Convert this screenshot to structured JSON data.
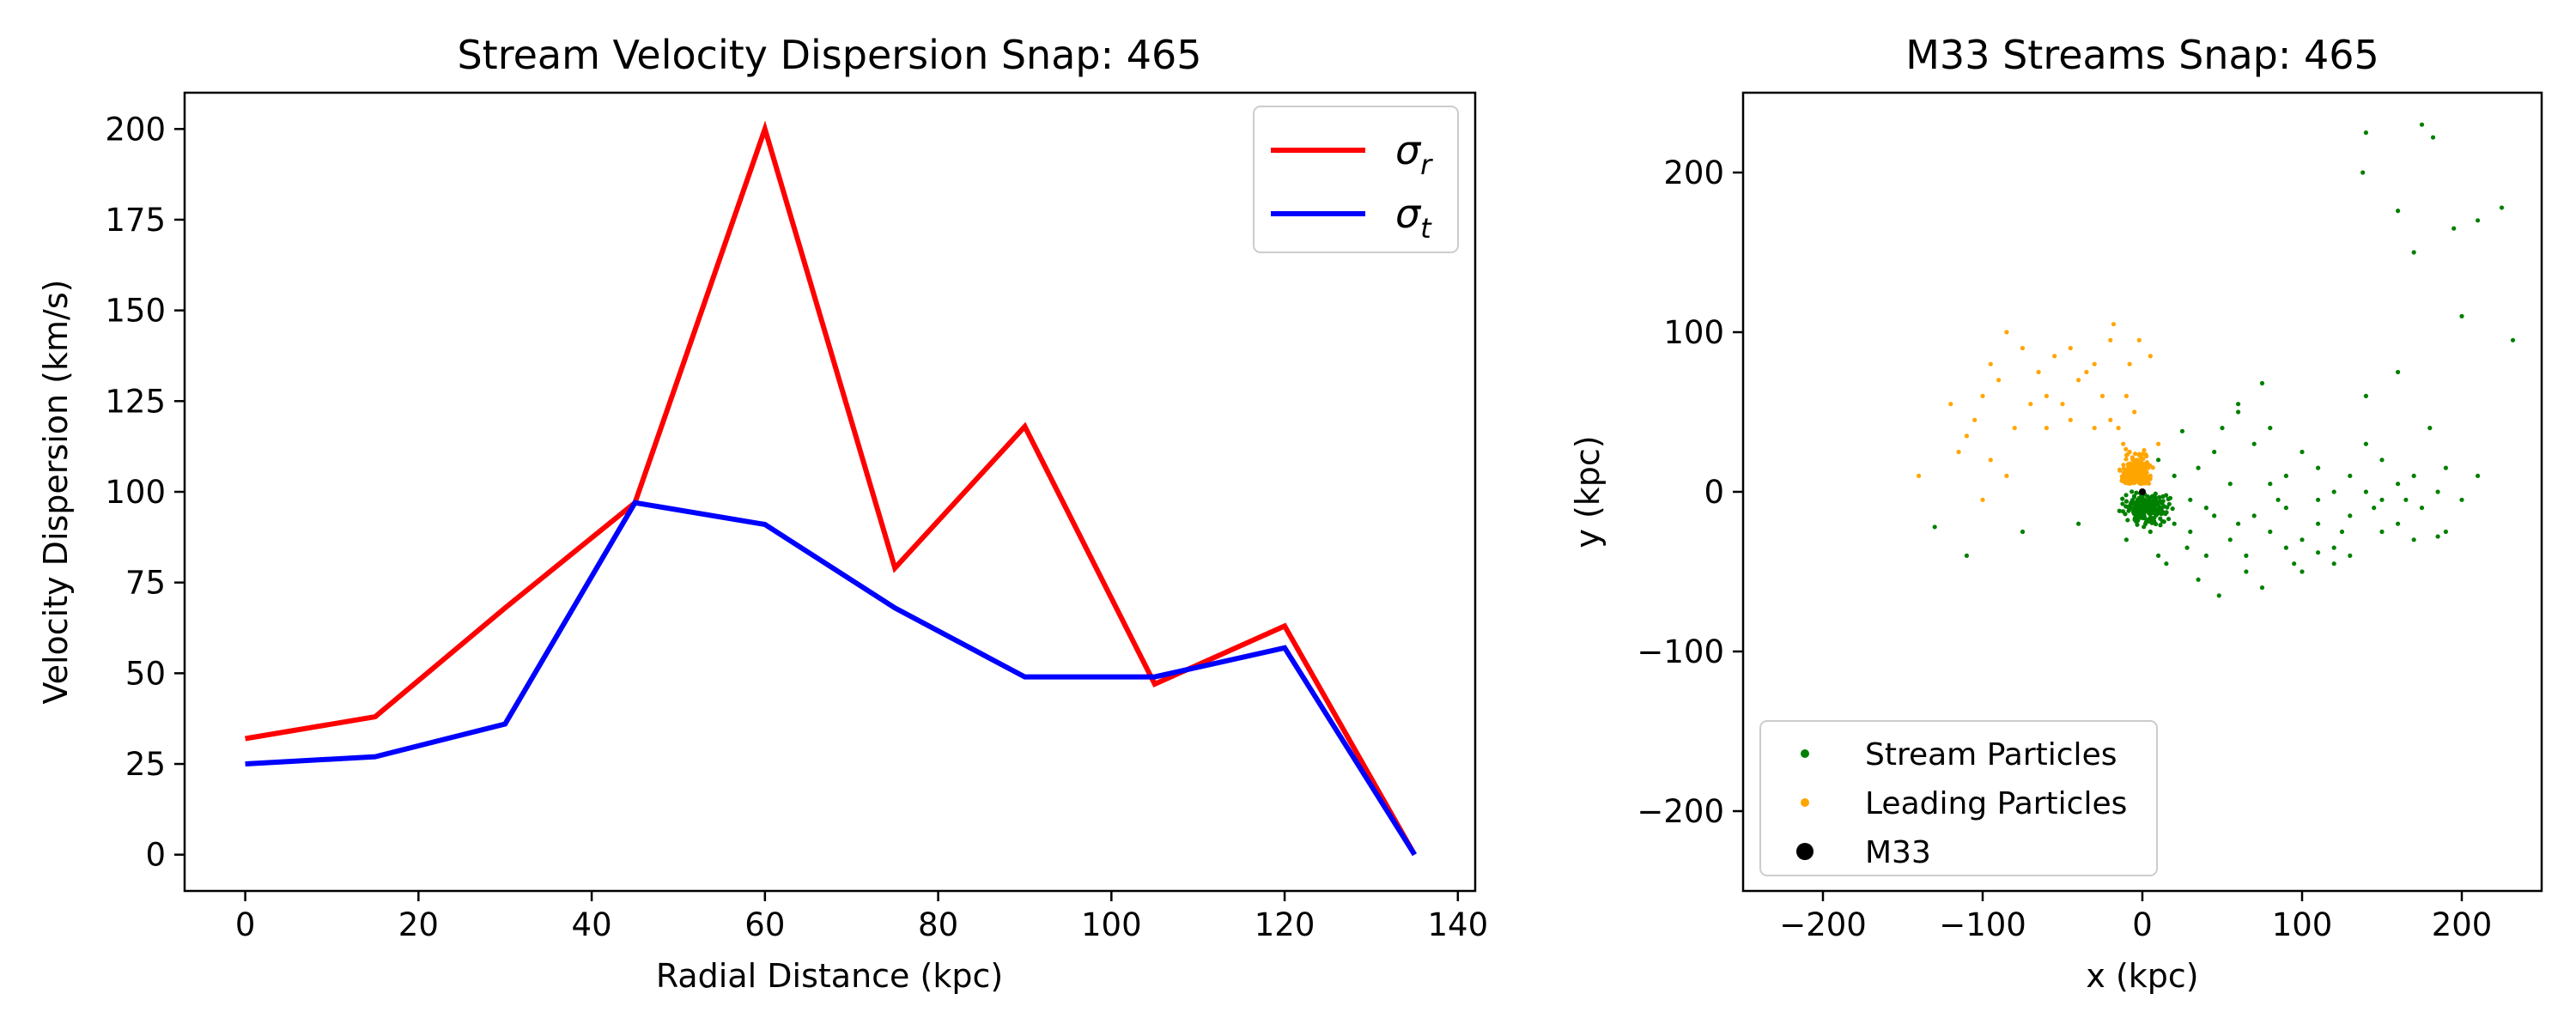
{
  "chart_data": [
    {
      "type": "line",
      "title": "Stream Velocity Dispersion Snap: 465",
      "xlabel": "Radial Distance (kpc)",
      "ylabel": "Velocity Dispersion (km/s)",
      "xlim": [
        -7,
        142
      ],
      "ylim": [
        -10,
        210
      ],
      "xticks": [
        0,
        20,
        40,
        60,
        80,
        100,
        120,
        140
      ],
      "yticks": [
        0,
        25,
        50,
        75,
        100,
        125,
        150,
        175,
        200
      ],
      "legend_position": "upper right",
      "x": [
        0,
        15,
        30,
        45,
        60,
        75,
        90,
        105,
        120,
        135
      ],
      "series": [
        {
          "name": "σr",
          "symbol": "σ",
          "sub": "r",
          "color": "#ff0000",
          "values": [
            32,
            38,
            68,
            97,
            200,
            79,
            118,
            47,
            63,
            0
          ]
        },
        {
          "name": "σt",
          "symbol": "σ",
          "sub": "t",
          "color": "#0000ff",
          "values": [
            25,
            27,
            36,
            97,
            91,
            68,
            49,
            49,
            57,
            0
          ]
        }
      ]
    },
    {
      "type": "scatter",
      "title": "M33 Streams Snap: 465",
      "xlabel": "x (kpc)",
      "ylabel": "y (kpc)",
      "xlim": [
        -250,
        250
      ],
      "ylim": [
        -250,
        250
      ],
      "xticks": [
        -200,
        -100,
        0,
        100,
        200
      ],
      "yticks": [
        -200,
        -100,
        0,
        100,
        200
      ],
      "legend_position": "lower left",
      "series": [
        {
          "name": "Stream Particles",
          "color": "#008000",
          "points": [
            [
              25,
              38
            ],
            [
              28,
              -35
            ],
            [
              40,
              -40
            ],
            [
              55,
              -30
            ],
            [
              60,
              -20
            ],
            [
              70,
              -15
            ],
            [
              80,
              -25
            ],
            [
              90,
              -10
            ],
            [
              100,
              -30
            ],
            [
              110,
              -20
            ],
            [
              120,
              -35
            ],
            [
              130,
              -15
            ],
            [
              140,
              0
            ],
            [
              150,
              -5
            ],
            [
              160,
              -20
            ],
            [
              175,
              -10
            ],
            [
              185,
              0
            ],
            [
              190,
              15
            ],
            [
              180,
              40
            ],
            [
              170,
              10
            ],
            [
              160,
              5
            ],
            [
              150,
              20
            ],
            [
              140,
              30
            ],
            [
              130,
              10
            ],
            [
              120,
              0
            ],
            [
              110,
              15
            ],
            [
              100,
              25
            ],
            [
              90,
              10
            ],
            [
              80,
              5
            ],
            [
              70,
              30
            ],
            [
              60,
              50
            ],
            [
              50,
              40
            ],
            [
              40,
              -10
            ],
            [
              30,
              -5
            ],
            [
              20,
              10
            ],
            [
              10,
              20
            ],
            [
              5,
              -25
            ],
            [
              -5,
              -10
            ],
            [
              15,
              -45
            ],
            [
              35,
              -55
            ],
            [
              65,
              -50
            ],
            [
              95,
              -45
            ],
            [
              110,
              -5
            ],
            [
              150,
              -25
            ],
            [
              200,
              -5
            ],
            [
              210,
              10
            ],
            [
              140,
              60
            ],
            [
              160,
              75
            ],
            [
              75,
              68
            ],
            [
              60,
              55
            ],
            [
              80,
              40
            ],
            [
              45,
              25
            ],
            [
              35,
              15
            ],
            [
              55,
              5
            ],
            [
              85,
              -5
            ],
            [
              125,
              -25
            ],
            [
              145,
              -10
            ],
            [
              165,
              -5
            ],
            [
              120,
              -45
            ],
            [
              100,
              -50
            ],
            [
              75,
              -60
            ],
            [
              48,
              -65
            ],
            [
              -75,
              -25
            ],
            [
              -110,
              -40
            ],
            [
              -130,
              -22
            ],
            [
              -40,
              -20
            ],
            [
              -10,
              -30
            ],
            [
              10,
              -40
            ],
            [
              200,
              110
            ],
            [
              210,
              170
            ],
            [
              225,
              178
            ],
            [
              232,
              95
            ],
            [
              195,
              165
            ],
            [
              170,
              150
            ],
            [
              160,
              176
            ],
            [
              140,
              225
            ],
            [
              138,
              200
            ],
            [
              175,
              230
            ],
            [
              182,
              222
            ],
            [
              190,
              -25
            ],
            [
              170,
              -30
            ],
            [
              185,
              -28
            ],
            [
              130,
              -40
            ],
            [
              110,
              -38
            ],
            [
              90,
              -35
            ],
            [
              65,
              -40
            ],
            [
              30,
              -25
            ],
            [
              20,
              -20
            ],
            [
              45,
              -15
            ]
          ]
        },
        {
          "name": "Leading Particles",
          "color": "#ffa500",
          "points": [
            [
              -20,
              95
            ],
            [
              -30,
              80
            ],
            [
              -45,
              90
            ],
            [
              -55,
              85
            ],
            [
              -65,
              75
            ],
            [
              -75,
              90
            ],
            [
              -85,
              100
            ],
            [
              -95,
              80
            ],
            [
              -90,
              70
            ],
            [
              -100,
              60
            ],
            [
              -105,
              45
            ],
            [
              -110,
              35
            ],
            [
              -115,
              25
            ],
            [
              -120,
              55
            ],
            [
              -140,
              10
            ],
            [
              -60,
              60
            ],
            [
              -50,
              55
            ],
            [
              -40,
              70
            ],
            [
              -10,
              60
            ],
            [
              -5,
              50
            ],
            [
              -15,
              40
            ],
            [
              -20,
              45
            ],
            [
              -12,
              30
            ],
            [
              -8,
              25
            ],
            [
              -3,
              20
            ],
            [
              0,
              15
            ],
            [
              5,
              10
            ],
            [
              -25,
              60
            ],
            [
              -30,
              40
            ],
            [
              -2,
              95
            ],
            [
              5,
              85
            ],
            [
              -18,
              105
            ],
            [
              -35,
              75
            ],
            [
              -80,
              40
            ],
            [
              -85,
              10
            ],
            [
              -70,
              55
            ],
            [
              -60,
              40
            ],
            [
              -45,
              45
            ],
            [
              10,
              30
            ],
            [
              -8,
              80
            ],
            [
              -95,
              20
            ],
            [
              -100,
              -5
            ]
          ]
        },
        {
          "name": "M33",
          "color": "#000000",
          "points": [
            [
              0,
              0
            ]
          ]
        }
      ]
    }
  ]
}
